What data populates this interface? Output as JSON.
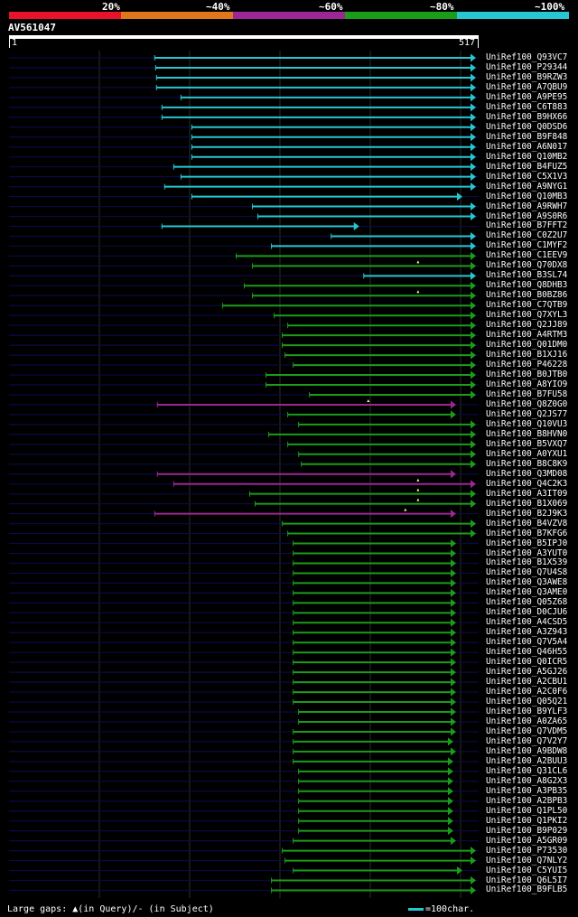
{
  "query": {
    "id": "AV561047",
    "start": "1",
    "end": "517",
    "length": 517
  },
  "scale": [
    {
      "label": "20%",
      "color": "#e8132a"
    },
    {
      "label": "~40%",
      "color": "#e0771b"
    },
    {
      "label": "~60%",
      "color": "#9a2794"
    },
    {
      "label": "~80%",
      "color": "#1b9c1b"
    },
    {
      "label": "~100%",
      "color": "#27c6d3"
    }
  ],
  "colors": {
    "cyan": "#27c6d3",
    "green": "#1b9c1b",
    "purple": "#9a2794",
    "subject_line": "#0a0a46",
    "grid": "#2c2c2c"
  },
  "footer": {
    "gaps": "Large gaps: ▲(in Query)/- (in Subject)",
    "legend": "=100char."
  },
  "hits": [
    {
      "name": "UniRef100_Q93VC7",
      "s": 162,
      "e": 517,
      "c": "cyan",
      "g": []
    },
    {
      "name": "UniRef100_P29344",
      "s": 163,
      "e": 517,
      "c": "cyan",
      "g": []
    },
    {
      "name": "UniRef100_B9RZW3",
      "s": 164,
      "e": 517,
      "c": "cyan",
      "g": []
    },
    {
      "name": "UniRef100_A7QBU9",
      "s": 164,
      "e": 517,
      "c": "cyan",
      "g": []
    },
    {
      "name": "UniRef100_A9PE95",
      "s": 191,
      "e": 517,
      "c": "cyan",
      "g": []
    },
    {
      "name": "UniRef100_C6T883",
      "s": 170,
      "e": 517,
      "c": "cyan",
      "g": []
    },
    {
      "name": "UniRef100_B9HX66",
      "s": 170,
      "e": 517,
      "c": "cyan",
      "g": []
    },
    {
      "name": "UniRef100_Q0DSD6",
      "s": 203,
      "e": 517,
      "c": "cyan",
      "g": []
    },
    {
      "name": "UniRef100_B9F848",
      "s": 203,
      "e": 517,
      "c": "cyan",
      "g": []
    },
    {
      "name": "UniRef100_A6N017",
      "s": 203,
      "e": 517,
      "c": "cyan",
      "g": []
    },
    {
      "name": "UniRef100_Q10MB2",
      "s": 203,
      "e": 517,
      "c": "cyan",
      "g": []
    },
    {
      "name": "UniRef100_B4FUZ5",
      "s": 183,
      "e": 517,
      "c": "cyan",
      "g": []
    },
    {
      "name": "UniRef100_C5X1V3",
      "s": 191,
      "e": 517,
      "c": "cyan",
      "g": []
    },
    {
      "name": "UniRef100_A9NYG1",
      "s": 173,
      "e": 517,
      "c": "cyan",
      "g": []
    },
    {
      "name": "UniRef100_Q10MB3",
      "s": 203,
      "e": 502,
      "c": "cyan",
      "g": []
    },
    {
      "name": "UniRef100_A9RWH7",
      "s": 270,
      "e": 517,
      "c": "cyan",
      "g": []
    },
    {
      "name": "UniRef100_A9S0R6",
      "s": 276,
      "e": 517,
      "c": "cyan",
      "g": []
    },
    {
      "name": "UniRef100_B7FFT2",
      "s": 170,
      "e": 388,
      "c": "cyan",
      "g": []
    },
    {
      "name": "UniRef100_C0Z2U7",
      "s": 357,
      "e": 517,
      "c": "cyan",
      "g": []
    },
    {
      "name": "UniRef100_C1MYF2",
      "s": 291,
      "e": 517,
      "c": "cyan",
      "g": []
    },
    {
      "name": "UniRef100_C1EEV9",
      "s": 252,
      "e": 517,
      "c": "green",
      "g": []
    },
    {
      "name": "UniRef100_Q70DX8",
      "s": 270,
      "e": 517,
      "c": "green",
      "g": [
        453
      ]
    },
    {
      "name": "UniRef100_B3SL74",
      "s": 393,
      "e": 517,
      "c": "cyan",
      "g": []
    },
    {
      "name": "UniRef100_Q8DHB3",
      "s": 261,
      "e": 517,
      "c": "green",
      "g": []
    },
    {
      "name": "UniRef100_B0BZ86",
      "s": 270,
      "e": 517,
      "c": "green",
      "g": [
        453
      ]
    },
    {
      "name": "UniRef100_C7QTB9",
      "s": 237,
      "e": 517,
      "c": "green",
      "g": []
    },
    {
      "name": "UniRef100_Q7XYL3",
      "s": 294,
      "e": 517,
      "c": "green",
      "g": []
    },
    {
      "name": "UniRef100_Q2JJ89",
      "s": 309,
      "e": 517,
      "c": "green",
      "g": []
    },
    {
      "name": "UniRef100_A4RTM3",
      "s": 303,
      "e": 517,
      "c": "green",
      "g": []
    },
    {
      "name": "UniRef100_Q01DM0",
      "s": 303,
      "e": 517,
      "c": "green",
      "g": []
    },
    {
      "name": "UniRef100_B1XJ16",
      "s": 306,
      "e": 517,
      "c": "green",
      "g": []
    },
    {
      "name": "UniRef100_P46228",
      "s": 315,
      "e": 517,
      "c": "green",
      "g": []
    },
    {
      "name": "UniRef100_B0JTB0",
      "s": 285,
      "e": 517,
      "c": "green",
      "g": []
    },
    {
      "name": "UniRef100_A8YIO9",
      "s": 285,
      "e": 517,
      "c": "green",
      "g": []
    },
    {
      "name": "UniRef100_B7FU58",
      "s": 333,
      "e": 517,
      "c": "green",
      "g": []
    },
    {
      "name": "UniRef100_Q8Z0G0",
      "s": 165,
      "e": 495,
      "c": "purple",
      "g": [
        398
      ]
    },
    {
      "name": "UniRef100_Q2JS77",
      "s": 309,
      "e": 495,
      "c": "green",
      "g": []
    },
    {
      "name": "UniRef100_Q10VU3",
      "s": 321,
      "e": 517,
      "c": "green",
      "g": []
    },
    {
      "name": "UniRef100_B8HVN0",
      "s": 288,
      "e": 517,
      "c": "green",
      "g": []
    },
    {
      "name": "UniRef100_B5VXQ7",
      "s": 309,
      "e": 517,
      "c": "green",
      "g": []
    },
    {
      "name": "UniRef100_A0YXU1",
      "s": 321,
      "e": 517,
      "c": "green",
      "g": []
    },
    {
      "name": "UniRef100_B8C8K9",
      "s": 324,
      "e": 517,
      "c": "green",
      "g": []
    },
    {
      "name": "UniRef100_Q3MD08",
      "s": 165,
      "e": 495,
      "c": "purple",
      "g": []
    },
    {
      "name": "UniRef100_Q4C2K3",
      "s": 183,
      "e": 517,
      "c": "purple",
      "g": [
        453
      ]
    },
    {
      "name": "UniRef100_A3IT09",
      "s": 267,
      "e": 517,
      "c": "green",
      "g": [
        453
      ]
    },
    {
      "name": "UniRef100_B1X069",
      "s": 273,
      "e": 517,
      "c": "green",
      "g": [
        453
      ]
    },
    {
      "name": "UniRef100_B2J9K3",
      "s": 162,
      "e": 495,
      "c": "purple",
      "g": [
        439
      ]
    },
    {
      "name": "UniRef100_B4VZV8",
      "s": 303,
      "e": 517,
      "c": "green",
      "g": []
    },
    {
      "name": "UniRef100_B7KFG6",
      "s": 309,
      "e": 517,
      "c": "green",
      "g": []
    },
    {
      "name": "UniRef100_B5IPJ0",
      "s": 315,
      "e": 495,
      "c": "green",
      "g": []
    },
    {
      "name": "UniRef100_A3YUT0",
      "s": 315,
      "e": 495,
      "c": "green",
      "g": []
    },
    {
      "name": "UniRef100_B1X539",
      "s": 315,
      "e": 495,
      "c": "green",
      "g": []
    },
    {
      "name": "UniRef100_Q7U4S8",
      "s": 315,
      "e": 495,
      "c": "green",
      "g": []
    },
    {
      "name": "UniRef100_Q3AWE8",
      "s": 315,
      "e": 495,
      "c": "green",
      "g": []
    },
    {
      "name": "UniRef100_Q3AME0",
      "s": 315,
      "e": 495,
      "c": "green",
      "g": []
    },
    {
      "name": "UniRef100_Q05Z68",
      "s": 315,
      "e": 495,
      "c": "green",
      "g": []
    },
    {
      "name": "UniRef100_D0CJU6",
      "s": 315,
      "e": 495,
      "c": "green",
      "g": []
    },
    {
      "name": "UniRef100_A4CSD5",
      "s": 315,
      "e": 495,
      "c": "green",
      "g": []
    },
    {
      "name": "UniRef100_A3Z943",
      "s": 315,
      "e": 495,
      "c": "green",
      "g": []
    },
    {
      "name": "UniRef100_Q7V5A4",
      "s": 315,
      "e": 495,
      "c": "green",
      "g": []
    },
    {
      "name": "UniRef100_Q46H55",
      "s": 315,
      "e": 495,
      "c": "green",
      "g": []
    },
    {
      "name": "UniRef100_Q0ICR5",
      "s": 315,
      "e": 495,
      "c": "green",
      "g": []
    },
    {
      "name": "UniRef100_A5GJ26",
      "s": 315,
      "e": 495,
      "c": "green",
      "g": []
    },
    {
      "name": "UniRef100_A2CBU1",
      "s": 315,
      "e": 495,
      "c": "green",
      "g": []
    },
    {
      "name": "UniRef100_A2C0F6",
      "s": 315,
      "e": 495,
      "c": "green",
      "g": []
    },
    {
      "name": "UniRef100_Q05Q21",
      "s": 315,
      "e": 495,
      "c": "green",
      "g": []
    },
    {
      "name": "UniRef100_B9YLF3",
      "s": 321,
      "e": 495,
      "c": "green",
      "g": []
    },
    {
      "name": "UniRef100_A0ZA65",
      "s": 321,
      "e": 495,
      "c": "green",
      "g": []
    },
    {
      "name": "UniRef100_Q7VDM5",
      "s": 315,
      "e": 495,
      "c": "green",
      "g": []
    },
    {
      "name": "UniRef100_Q7V2Y7",
      "s": 315,
      "e": 492,
      "c": "green",
      "g": []
    },
    {
      "name": "UniRef100_A9BDW8",
      "s": 315,
      "e": 495,
      "c": "green",
      "g": []
    },
    {
      "name": "UniRef100_A2BUU3",
      "s": 315,
      "e": 492,
      "c": "green",
      "g": []
    },
    {
      "name": "UniRef100_Q31CL6",
      "s": 321,
      "e": 492,
      "c": "green",
      "g": []
    },
    {
      "name": "UniRef100_A8G2X3",
      "s": 321,
      "e": 492,
      "c": "green",
      "g": []
    },
    {
      "name": "UniRef100_A3PB35",
      "s": 321,
      "e": 492,
      "c": "green",
      "g": []
    },
    {
      "name": "UniRef100_A2BPB3",
      "s": 321,
      "e": 492,
      "c": "green",
      "g": []
    },
    {
      "name": "UniRef100_Q1PL50",
      "s": 321,
      "e": 492,
      "c": "green",
      "g": []
    },
    {
      "name": "UniRef100_Q1PKI2",
      "s": 321,
      "e": 492,
      "c": "green",
      "g": []
    },
    {
      "name": "UniRef100_B9P029",
      "s": 321,
      "e": 492,
      "c": "green",
      "g": []
    },
    {
      "name": "UniRef100_A5GR09",
      "s": 315,
      "e": 495,
      "c": "green",
      "g": []
    },
    {
      "name": "UniRef100_P73530",
      "s": 303,
      "e": 517,
      "c": "green",
      "g": []
    },
    {
      "name": "UniRef100_Q7NLY2",
      "s": 306,
      "e": 517,
      "c": "green",
      "g": []
    },
    {
      "name": "UniRef100_C5YUI5",
      "s": 315,
      "e": 502,
      "c": "green",
      "g": []
    },
    {
      "name": "UniRef100_Q6L5I7",
      "s": 291,
      "e": 517,
      "c": "green",
      "g": []
    },
    {
      "name": "UniRef100_B9FLB5",
      "s": 291,
      "e": 517,
      "c": "green",
      "g": []
    }
  ]
}
